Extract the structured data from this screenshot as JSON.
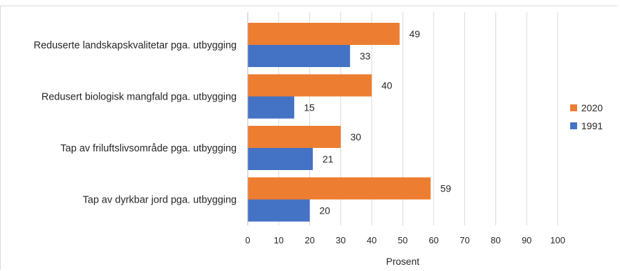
{
  "chart_data": {
    "type": "bar",
    "orientation": "horizontal",
    "categories": [
      "Reduserte landskapskvalitetar pga. utbygging",
      "Redusert biologisk mangfald pga. utbygging",
      "Tap av friluftslivsområde pga. utbygging",
      "Tap av dyrkbar jord pga. utbygging"
    ],
    "series": [
      {
        "name": "2020",
        "values": [
          49,
          40,
          30,
          59
        ],
        "color": "#ED7D31"
      },
      {
        "name": "1991",
        "values": [
          33,
          15,
          21,
          20
        ],
        "color": "#4472C4"
      }
    ],
    "xlabel": "Prosent",
    "ylabel": "",
    "xlim": [
      0,
      100
    ],
    "xticks": [
      "0",
      "10",
      "20",
      "30",
      "40",
      "50",
      "60",
      "70",
      "80",
      "90",
      "100"
    ],
    "grid": true,
    "legend_position": "right",
    "data_labels": true
  }
}
